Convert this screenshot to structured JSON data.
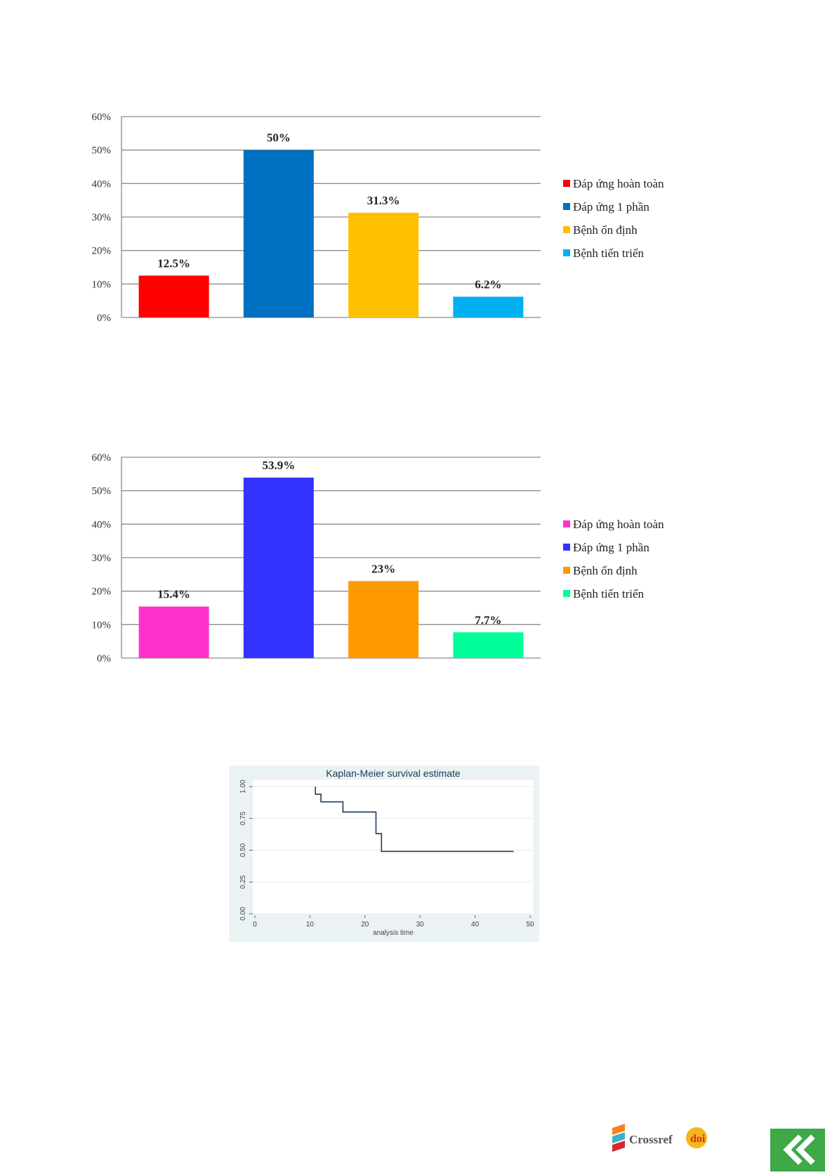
{
  "chart_data": [
    {
      "type": "bar",
      "categories": [
        "Đáp ứng hoàn toàn",
        "Đáp ứng 1 phần",
        "Bệnh ổn định",
        "Bệnh tiến triển"
      ],
      "values": [
        12.5,
        50,
        31.3,
        6.2
      ],
      "data_labels": [
        "12.5%",
        "50%",
        "31.3%",
        "6.2%"
      ],
      "colors": [
        "#ff0000",
        "#0070c0",
        "#ffc000",
        "#00b0f0"
      ],
      "y_ticks": [
        "0%",
        "10%",
        "20%",
        "30%",
        "40%",
        "50%",
        "60%"
      ],
      "ylim": [
        0,
        60
      ],
      "grid": true,
      "legend_position": "right",
      "bold_labels": true
    },
    {
      "type": "bar",
      "categories": [
        "Đáp ứng hoàn toàn",
        "Đáp ứng 1 phần",
        "Bệnh ổn định",
        "Bệnh tiến triển"
      ],
      "values": [
        15.4,
        53.9,
        23,
        7.7
      ],
      "data_labels": [
        "15.4%",
        "53.9%",
        "23%",
        "7.7%"
      ],
      "colors": [
        "#ff33cc",
        "#3333ff",
        "#ff9900",
        "#00ff99"
      ],
      "y_ticks": [
        "0%",
        "10%",
        "20%",
        "30%",
        "40%",
        "50%",
        "60%"
      ],
      "ylim": [
        0,
        60
      ],
      "grid": true,
      "legend_position": "right",
      "bold_labels": true
    },
    {
      "type": "line",
      "title": "Kaplan-Meier survival estimate",
      "xlabel": "analysis time",
      "x_ticks": [
        "0",
        "10",
        "20",
        "30",
        "40",
        "50"
      ],
      "y_ticks": [
        "0.00",
        "0.25",
        "0.50",
        "0.75",
        "1.00"
      ],
      "xlim": [
        0,
        50
      ],
      "ylim": [
        0,
        1
      ],
      "step": true,
      "series": [
        {
          "x": [
            11,
            11,
            12,
            12,
            16,
            16,
            22,
            22,
            23,
            23,
            47
          ],
          "y": [
            1.0,
            0.94,
            0.94,
            0.88,
            0.88,
            0.8,
            0.8,
            0.63,
            0.63,
            0.49,
            0.49
          ]
        }
      ],
      "grid": true
    }
  ],
  "footer": {
    "logo_text": "Crossref",
    "logo_badge": "doi",
    "nav_icon": "double-chevron-left-icon",
    "nav_color": "#3fa847"
  }
}
